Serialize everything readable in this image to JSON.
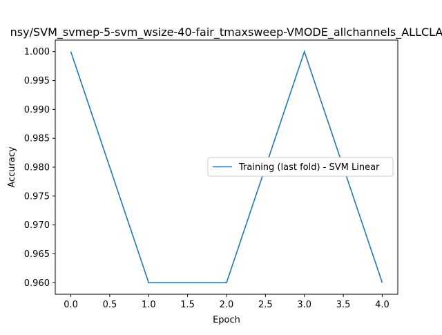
{
  "chart_data": {
    "type": "line",
    "title": "nsy/SVM_svmep-5-svm_wsize-40-fair_tmaxsweep-VMODE_allchannels_ALLCLA",
    "xlabel": "Epoch",
    "ylabel": "Accuracy",
    "xlim": [
      -0.2,
      4.2
    ],
    "ylim": [
      0.958,
      1.002
    ],
    "x_ticks": [
      0.0,
      0.5,
      1.0,
      1.5,
      2.0,
      2.5,
      3.0,
      3.5,
      4.0
    ],
    "x_tick_labels": [
      "0.0",
      "0.5",
      "1.0",
      "1.5",
      "2.0",
      "2.5",
      "3.0",
      "3.5",
      "4.0"
    ],
    "y_ticks": [
      0.96,
      0.965,
      0.97,
      0.975,
      0.98,
      0.985,
      0.99,
      0.995,
      1.0
    ],
    "y_tick_labels": [
      "0.960",
      "0.965",
      "0.970",
      "0.975",
      "0.980",
      "0.985",
      "0.990",
      "0.995",
      "1.000"
    ],
    "grid": false,
    "legend_position": "center-right",
    "series": [
      {
        "name": "Training (last fold) - SVM Linear",
        "color": "#1f77b4",
        "x": [
          0,
          1,
          2,
          3,
          4
        ],
        "y": [
          1.0,
          0.96,
          0.96,
          1.0,
          0.96
        ]
      }
    ]
  }
}
